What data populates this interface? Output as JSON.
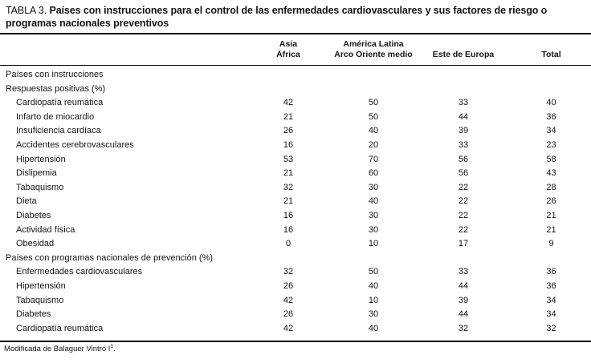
{
  "table": {
    "label": "TABLA 3.",
    "title": "Países con instrucciones para el control de las enfermedades cardiovasculares y sus factores de riesgo o programas nacionales preventivos",
    "columns": [
      {
        "line1": "Asia",
        "line2": "África"
      },
      {
        "line1": "América Latina",
        "line2": "Arco Oriente medio"
      },
      {
        "line1": "",
        "line2": "Este de Europa"
      },
      {
        "line1": "",
        "line2": "Total"
      }
    ],
    "rows": [
      {
        "type": "section",
        "label": "Países con instrucciones",
        "values": [
          "",
          "",
          "",
          ""
        ]
      },
      {
        "type": "section",
        "label": "Respuestas positivas (%)",
        "values": [
          "",
          "",
          "",
          ""
        ]
      },
      {
        "type": "item",
        "label": "Cardiopatía reumática",
        "values": [
          "42",
          "50",
          "33",
          "40"
        ]
      },
      {
        "type": "item",
        "label": "Infarto de miocardio",
        "values": [
          "21",
          "50",
          "44",
          "36"
        ]
      },
      {
        "type": "item",
        "label": "Insuficiencia cardíaca",
        "values": [
          "26",
          "40",
          "39",
          "34"
        ]
      },
      {
        "type": "item",
        "label": "Accidentes cerebrovasculares",
        "values": [
          "16",
          "20",
          "33",
          "23"
        ]
      },
      {
        "type": "item",
        "label": "Hipertensión",
        "values": [
          "53",
          "70",
          "56",
          "58"
        ]
      },
      {
        "type": "item",
        "label": "Dislipemia",
        "values": [
          "21",
          "60",
          "56",
          "43"
        ]
      },
      {
        "type": "item",
        "label": "Tabaquismo",
        "values": [
          "32",
          "30",
          "22",
          "28"
        ]
      },
      {
        "type": "item",
        "label": "Dieta",
        "values": [
          "21",
          "40",
          "22",
          "26"
        ]
      },
      {
        "type": "item",
        "label": "Diabetes",
        "values": [
          "16",
          "30",
          "22",
          "21"
        ]
      },
      {
        "type": "item",
        "label": "Actividad física",
        "values": [
          "16",
          "30",
          "22",
          "21"
        ]
      },
      {
        "type": "item",
        "label": "Obesidad",
        "values": [
          "0",
          "10",
          "17",
          "9"
        ]
      },
      {
        "type": "section",
        "label": "Países con programas nacionales de prevención (%)",
        "values": [
          "",
          "",
          "",
          ""
        ]
      },
      {
        "type": "item",
        "label": "Enfermedades cardiovasculares",
        "values": [
          "32",
          "50",
          "33",
          "36"
        ]
      },
      {
        "type": "item",
        "label": "Hipertensión",
        "values": [
          "26",
          "40",
          "44",
          "36"
        ]
      },
      {
        "type": "item",
        "label": "Tabaquismo",
        "values": [
          "42",
          "10",
          "39",
          "34"
        ]
      },
      {
        "type": "item",
        "label": "Diabetes",
        "values": [
          "26",
          "30",
          "44",
          "34"
        ]
      },
      {
        "type": "item",
        "label": "Cardiopatía reumática",
        "values": [
          "42",
          "40",
          "32",
          "32"
        ]
      }
    ],
    "footnote": {
      "text": "Modificada de Balaguer Vintró I",
      "sup": "1",
      "end": "."
    }
  },
  "chart_data": {
    "type": "table",
    "title": "TABLA 3. Países con instrucciones para el control de las enfermedades cardiovasculares y sus factores de riesgo o programas nacionales preventivos",
    "columns": [
      "Asia África",
      "América Latina Arco Oriente medio",
      "Este de Europa",
      "Total"
    ],
    "sections": [
      {
        "name": "Países con instrucciones — Respuestas positivas (%)",
        "rows": [
          {
            "label": "Cardiopatía reumática",
            "values": [
              42,
              50,
              33,
              40
            ]
          },
          {
            "label": "Infarto de miocardio",
            "values": [
              21,
              50,
              44,
              36
            ]
          },
          {
            "label": "Insuficiencia cardíaca",
            "values": [
              26,
              40,
              39,
              34
            ]
          },
          {
            "label": "Accidentes cerebrovasculares",
            "values": [
              16,
              20,
              33,
              23
            ]
          },
          {
            "label": "Hipertensión",
            "values": [
              53,
              70,
              56,
              58
            ]
          },
          {
            "label": "Dislipemia",
            "values": [
              21,
              60,
              56,
              43
            ]
          },
          {
            "label": "Tabaquismo",
            "values": [
              32,
              30,
              22,
              28
            ]
          },
          {
            "label": "Dieta",
            "values": [
              21,
              40,
              22,
              26
            ]
          },
          {
            "label": "Diabetes",
            "values": [
              16,
              30,
              22,
              21
            ]
          },
          {
            "label": "Actividad física",
            "values": [
              16,
              30,
              22,
              21
            ]
          },
          {
            "label": "Obesidad",
            "values": [
              0,
              10,
              17,
              9
            ]
          }
        ]
      },
      {
        "name": "Países con programas nacionales de prevención (%)",
        "rows": [
          {
            "label": "Enfermedades cardiovasculares",
            "values": [
              32,
              50,
              33,
              36
            ]
          },
          {
            "label": "Hipertensión",
            "values": [
              26,
              40,
              44,
              36
            ]
          },
          {
            "label": "Tabaquismo",
            "values": [
              42,
              10,
              39,
              34
            ]
          },
          {
            "label": "Diabetes",
            "values": [
              26,
              30,
              44,
              34
            ]
          },
          {
            "label": "Cardiopatía reumática",
            "values": [
              42,
              40,
              32,
              32
            ]
          }
        ]
      }
    ],
    "footnote": "Modificada de Balaguer Vintró I1."
  }
}
